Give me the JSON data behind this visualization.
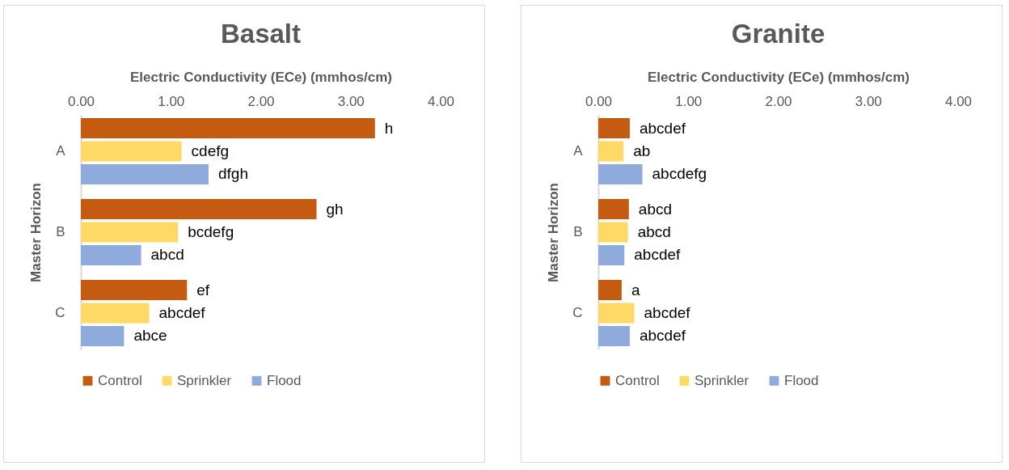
{
  "chart_data": [
    {
      "type": "bar",
      "orientation": "horizontal",
      "title": "Basalt",
      "xlabel": "Electric Conductivity (ECe) (mmhos/cm)",
      "ylabel": "Master Horizon",
      "categories": [
        "A",
        "B",
        "C"
      ],
      "xlim": [
        0,
        4
      ],
      "xticks": [
        {
          "value": 0,
          "label": "0.00"
        },
        {
          "value": 1,
          "label": "1.00"
        },
        {
          "value": 2,
          "label": "2.00"
        },
        {
          "value": 3,
          "label": "3.00"
        },
        {
          "value": 4,
          "label": "4.00"
        }
      ],
      "grid": false,
      "legend": "bottom",
      "series": [
        {
          "name": "Control",
          "color": "#c55a11",
          "values": [
            3.27,
            2.62,
            1.18
          ],
          "value_labels": [
            "h",
            "gh",
            "ef"
          ]
        },
        {
          "name": "Sprinkler",
          "color": "#ffd966",
          "values": [
            1.12,
            1.08,
            0.76
          ],
          "value_labels": [
            "cdefg",
            "bcdefg",
            "abcdef"
          ]
        },
        {
          "name": "Flood",
          "color": "#8faadc",
          "values": [
            1.42,
            0.67,
            0.48
          ],
          "value_labels": [
            "dfgh",
            "abcd",
            "abce"
          ]
        }
      ]
    },
    {
      "type": "bar",
      "orientation": "horizontal",
      "title": "Granite",
      "xlabel": "Electric Conductivity (ECe) (mmhos/cm)",
      "ylabel": "Master Horizon",
      "categories": [
        "A",
        "B",
        "C"
      ],
      "xlim": [
        0,
        4
      ],
      "xticks": [
        {
          "value": 0,
          "label": "0.00"
        },
        {
          "value": 1,
          "label": "1.00"
        },
        {
          "value": 2,
          "label": "2.00"
        },
        {
          "value": 3,
          "label": "3.00"
        },
        {
          "value": 4,
          "label": "4.00"
        }
      ],
      "grid": false,
      "legend": "bottom",
      "series": [
        {
          "name": "Control",
          "color": "#c55a11",
          "values": [
            0.35,
            0.34,
            0.26
          ],
          "value_labels": [
            "abcdef",
            "abcd",
            "a"
          ]
        },
        {
          "name": "Sprinkler",
          "color": "#ffd966",
          "values": [
            0.28,
            0.33,
            0.4
          ],
          "value_labels": [
            "ab",
            "abcd",
            "abcdef"
          ]
        },
        {
          "name": "Flood",
          "color": "#8faadc",
          "values": [
            0.49,
            0.29,
            0.35
          ],
          "value_labels": [
            "abcdefg",
            "abcdef",
            "abcdef"
          ]
        }
      ]
    }
  ]
}
